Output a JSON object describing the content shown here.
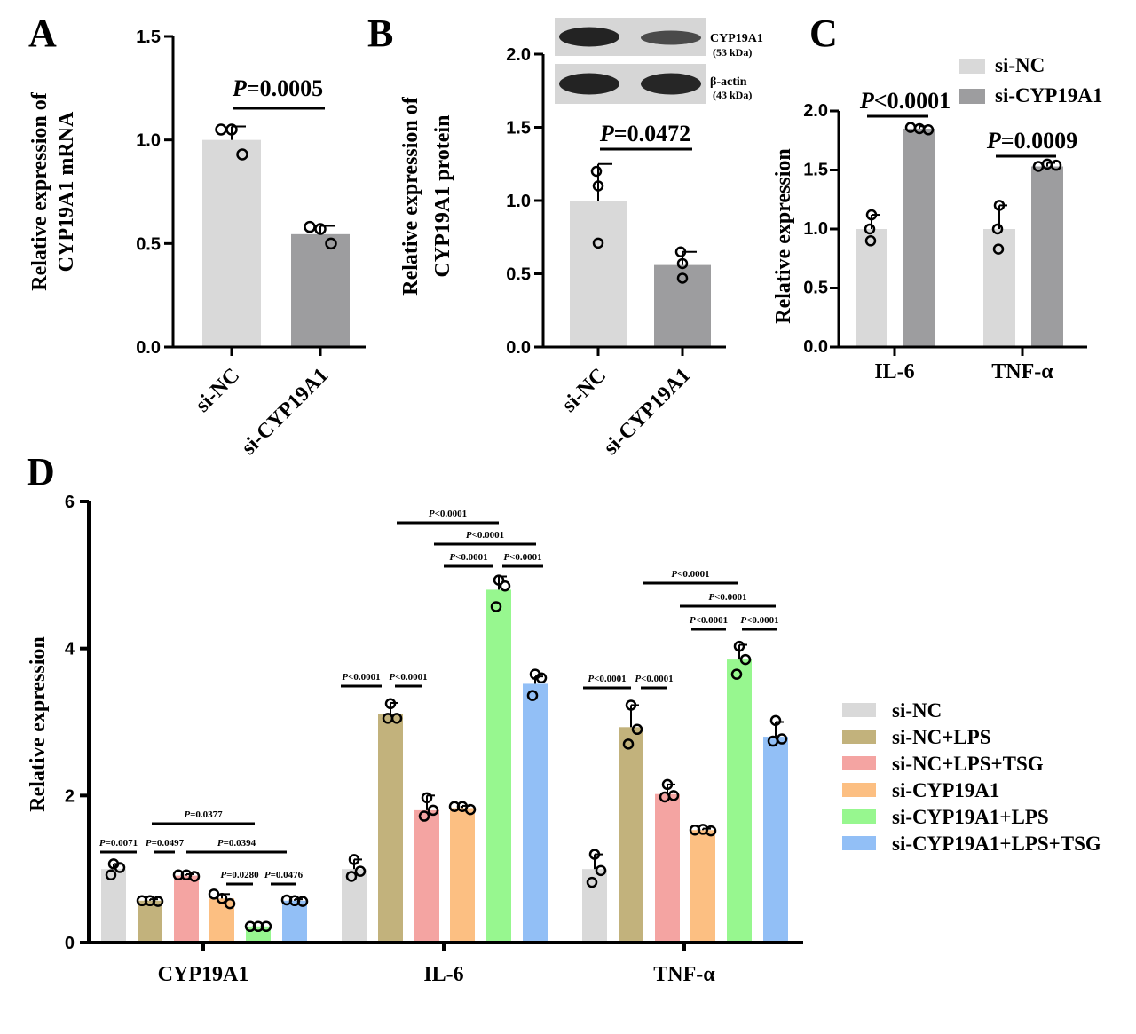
{
  "panel_labels": [
    "A",
    "B",
    "C",
    "D"
  ],
  "colors": {
    "si-NC": "#d9d9d9",
    "si-CYP19A1": "#9d9d9f",
    "si-NC+LPS": "#c2b27c",
    "si-NC+LPS+TSG": "#f4a4a2",
    "si-CYP19A1 (D)": "#fcbf82",
    "si-CYP19A1+LPS": "#97f78f",
    "si-CYP19A1+LPS+TSG": "#92bff6"
  },
  "chart_data": [
    {
      "panel": "A",
      "type": "bar",
      "ylabel": [
        "Relative expression of",
        "CYP19A1 mRNA"
      ],
      "ylim": [
        0,
        1.5
      ],
      "yticks": [
        "0.0",
        "0.5",
        "1.0",
        "1.5"
      ],
      "categories": [
        "si-NC",
        "si-CYP19A1"
      ],
      "values": [
        1.0,
        0.545
      ],
      "errors": [
        0.065,
        0.04
      ],
      "points": [
        [
          1.05,
          1.05,
          0.93
        ],
        [
          0.58,
          0.57,
          0.5
        ]
      ],
      "comparisons": [
        {
          "from": 0,
          "to": 1,
          "label": "P=0.0005"
        }
      ]
    },
    {
      "panel": "B",
      "type": "bar",
      "ylabel": [
        "Relative expression of",
        "CYP19A1 protein"
      ],
      "ylim": [
        0,
        2.0
      ],
      "yticks": [
        "0.0",
        "0.5",
        "1.0",
        "1.5",
        "2.0"
      ],
      "categories": [
        "si-NC",
        "si-CYP19A1"
      ],
      "values": [
        1.0,
        0.56
      ],
      "errors": [
        0.25,
        0.09
      ],
      "points": [
        [
          1.2,
          1.1,
          0.71
        ],
        [
          0.65,
          0.57,
          0.47
        ]
      ],
      "comparisons": [
        {
          "from": 0,
          "to": 1,
          "label": "P=0.0472"
        }
      ],
      "blot": [
        {
          "label": "CYP19A1",
          "kda": "(53 kDa)"
        },
        {
          "label": "β-actin",
          "kda": "(43 kDa)"
        }
      ]
    },
    {
      "panel": "C",
      "type": "bar",
      "ylabel": "Relative expression",
      "ylim": [
        0,
        2.0
      ],
      "yticks": [
        "0.0",
        "0.5",
        "1.0",
        "1.5",
        "2.0"
      ],
      "categories": [
        "IL-6",
        "TNF-α"
      ],
      "series": [
        {
          "name": "si-NC",
          "values": [
            1.0,
            1.0
          ],
          "errors": [
            0.12,
            0.2
          ],
          "points": [
            [
              1.12,
              1.0,
              0.9
            ],
            [
              1.2,
              1.0,
              0.83
            ]
          ]
        },
        {
          "name": "si-CYP19A1",
          "values": [
            1.85,
            1.53
          ],
          "errors": [
            0.02,
            0.03
          ],
          "points": [
            [
              1.86,
              1.85,
              1.84
            ],
            [
              1.53,
              1.55,
              1.54
            ]
          ]
        }
      ],
      "comparisons": [
        {
          "category": 0,
          "label": "P<0.0001"
        },
        {
          "category": 1,
          "label": "P=0.0009"
        }
      ],
      "legend_position": "top-right"
    },
    {
      "panel": "D",
      "type": "bar",
      "ylabel": "Relative expression",
      "ylim": [
        0,
        6
      ],
      "yticks": [
        "0",
        "2",
        "4",
        "6"
      ],
      "categories": [
        "CYP19A1",
        "IL-6",
        "TNF-α"
      ],
      "series": [
        {
          "name": "si-NC",
          "values": [
            1.0,
            1.0,
            1.0
          ],
          "errors": [
            0.07,
            0.13,
            0.2
          ],
          "points": [
            [
              1.07,
              1.02,
              0.92
            ],
            [
              1.13,
              0.97,
              0.9
            ],
            [
              1.2,
              0.98,
              0.82
            ]
          ]
        },
        {
          "name": "si-NC+LPS",
          "values": [
            0.57,
            3.11,
            2.93
          ],
          "errors": [
            0.02,
            0.15,
            0.3
          ],
          "points": [
            [
              0.57,
              0.57,
              0.56
            ],
            [
              3.25,
              3.05,
              3.05
            ],
            [
              3.23,
              2.9,
              2.7
            ]
          ]
        },
        {
          "name": "si-NC+LPS+TSG",
          "values": [
            0.91,
            1.8,
            2.02
          ],
          "errors": [
            0.02,
            0.2,
            0.13
          ],
          "points": [
            [
              0.92,
              0.92,
              0.9
            ],
            [
              1.97,
              1.8,
              1.72
            ],
            [
              2.15,
              2.0,
              1.98
            ]
          ]
        },
        {
          "name": "si-CYP19A1",
          "values": [
            0.6,
            1.83,
            1.53
          ],
          "errors": [
            0.06,
            0.03,
            0.02
          ],
          "points": [
            [
              0.66,
              0.6,
              0.53
            ],
            [
              1.85,
              1.85,
              1.81
            ],
            [
              1.53,
              1.54,
              1.52
            ]
          ]
        },
        {
          "name": "si-CYP19A1+LPS",
          "values": [
            0.22,
            4.8,
            3.85
          ],
          "errors": [
            0.0,
            0.18,
            0.2
          ],
          "points": [
            [
              0.22,
              0.22,
              0.22
            ],
            [
              4.93,
              4.85,
              4.57
            ],
            [
              4.03,
              3.85,
              3.65
            ]
          ]
        },
        {
          "name": "si-CYP19A1+LPS+TSG",
          "values": [
            0.57,
            3.52,
            2.8
          ],
          "errors": [
            0.02,
            0.1,
            0.2
          ],
          "points": [
            [
              0.58,
              0.57,
              0.56
            ],
            [
              3.65,
              3.6,
              3.36
            ],
            [
              3.02,
              2.77,
              2.74
            ]
          ]
        }
      ],
      "comparisons": [
        {
          "category": 0,
          "from": 0,
          "to": 1,
          "label": "P=0.0071"
        },
        {
          "category": 0,
          "from": 1,
          "to": 2,
          "label": "P=0.0497"
        },
        {
          "category": 0,
          "from": 1,
          "to": 4,
          "label": "P=0.0377"
        },
        {
          "category": 0,
          "from": 2,
          "to": 5,
          "label": "P=0.0394"
        },
        {
          "category": 0,
          "from": 3,
          "to": 4,
          "label": "P=0.0280"
        },
        {
          "category": 0,
          "from": 4,
          "to": 5,
          "label": "P=0.0476"
        },
        {
          "category": 1,
          "from": 0,
          "to": 1,
          "label": "P<0.0001"
        },
        {
          "category": 1,
          "from": 1,
          "to": 2,
          "label": "P<0.0001"
        },
        {
          "category": 1,
          "from": 1,
          "to": 4,
          "label": "P<0.0001"
        },
        {
          "category": 1,
          "from": 2,
          "to": 5,
          "label": "P<0.0001"
        },
        {
          "category": 1,
          "from": 3,
          "to": 4,
          "label": "P<0.0001"
        },
        {
          "category": 1,
          "from": 4,
          "to": 5,
          "label": "P<0.0001"
        },
        {
          "category": 2,
          "from": 0,
          "to": 1,
          "label": "P<0.0001"
        },
        {
          "category": 2,
          "from": 1,
          "to": 2,
          "label": "P<0.0001"
        },
        {
          "category": 2,
          "from": 1,
          "to": 4,
          "label": "P<0.0001"
        },
        {
          "category": 2,
          "from": 2,
          "to": 5,
          "label": "P<0.0001"
        },
        {
          "category": 2,
          "from": 3,
          "to": 4,
          "label": "P<0.0001"
        },
        {
          "category": 2,
          "from": 4,
          "to": 5,
          "label": "P<0.0001"
        }
      ],
      "legend_position": "right"
    }
  ]
}
